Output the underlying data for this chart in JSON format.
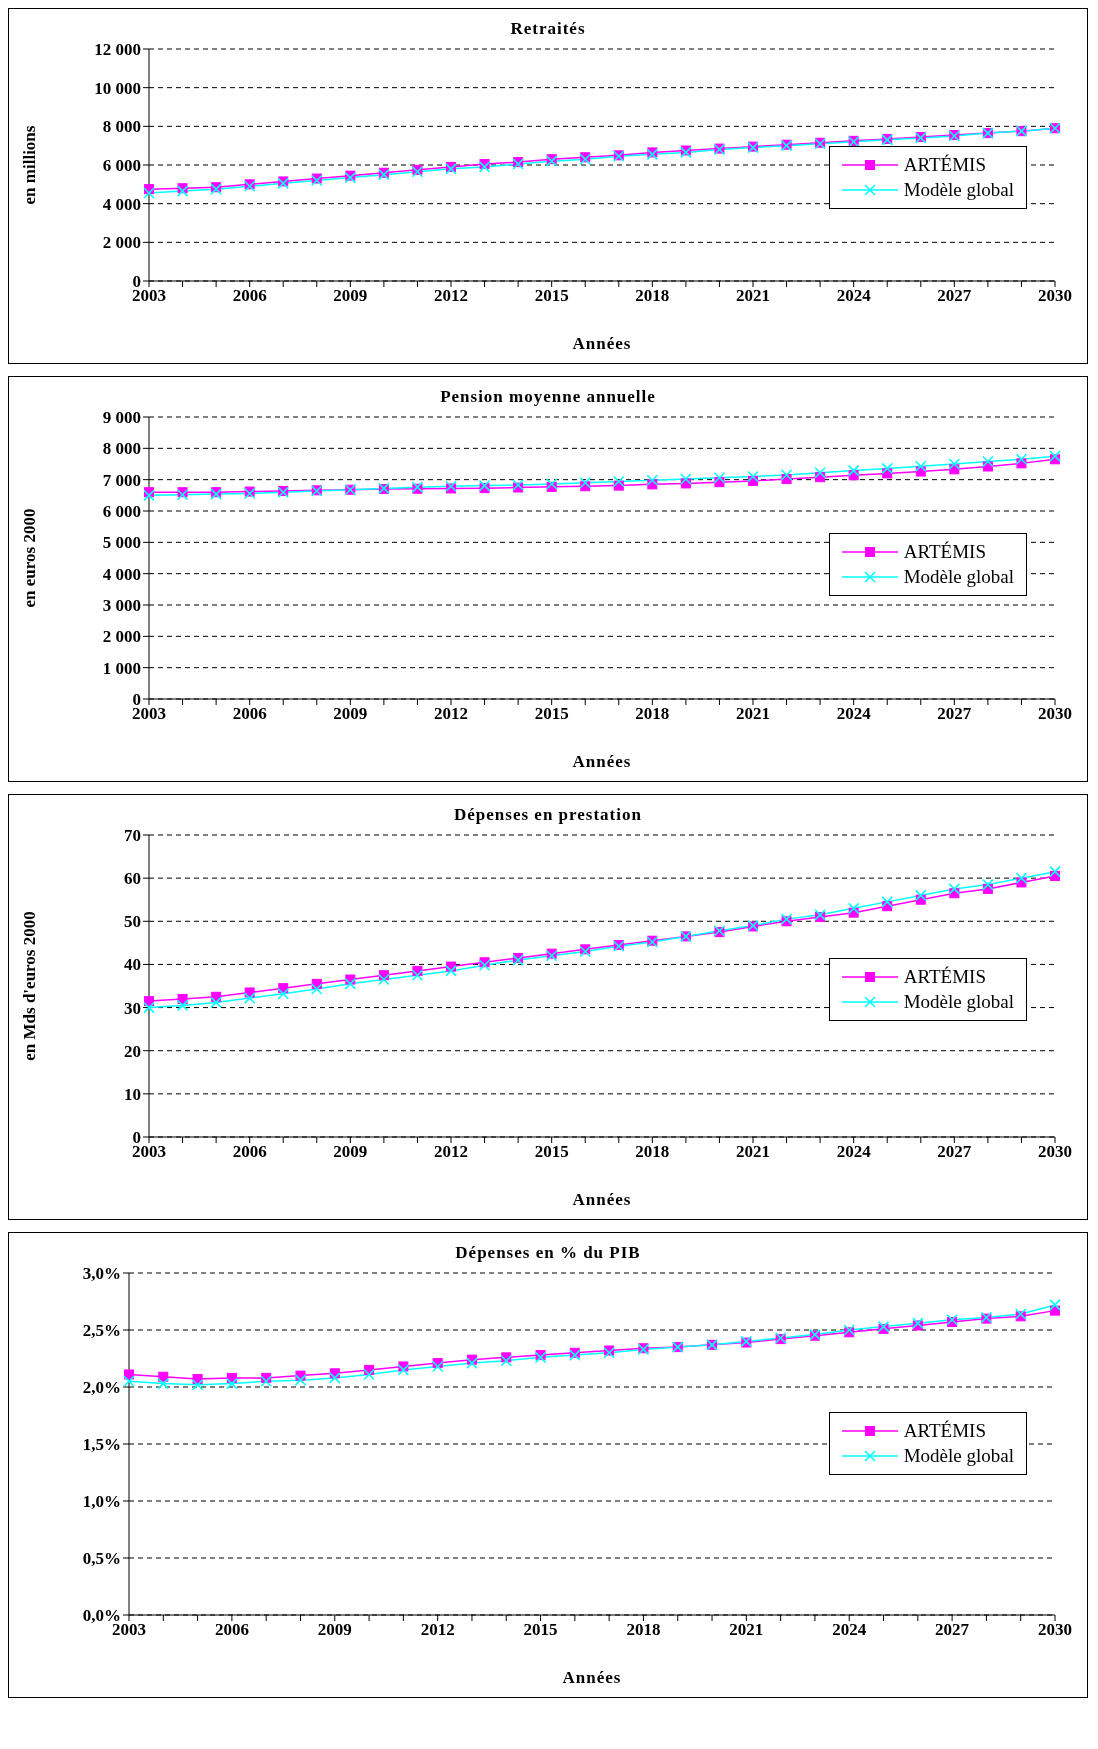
{
  "chart_data": [
    {
      "type": "line",
      "title": "Retraités",
      "xlabel": "Années",
      "ylabel": "en millions",
      "categories": [
        "2003",
        null,
        null,
        "2006",
        null,
        null,
        "2009",
        null,
        null,
        "2012",
        null,
        null,
        "2015",
        null,
        null,
        "2018",
        null,
        null,
        "2021",
        null,
        null,
        "2024",
        null,
        null,
        "2027",
        null,
        null,
        "2030"
      ],
      "series": [
        {
          "name": "ARTÉMIS",
          "color": "#ff00ff",
          "marker": "square",
          "values": [
            4750,
            4800,
            4850,
            5000,
            5150,
            5300,
            5450,
            5600,
            5750,
            5900,
            6050,
            6150,
            6300,
            6400,
            6500,
            6650,
            6750,
            6850,
            6950,
            7050,
            7150,
            7250,
            7350,
            7450,
            7550,
            7650,
            7750,
            7900
          ]
        },
        {
          "name": "Modèle global",
          "color": "#00ffff",
          "marker": "cross",
          "values": [
            4550,
            4650,
            4750,
            4900,
            5050,
            5200,
            5350,
            5500,
            5650,
            5800,
            5900,
            6050,
            6200,
            6300,
            6450,
            6550,
            6650,
            6800,
            6900,
            7000,
            7100,
            7200,
            7300,
            7400,
            7500,
            7650,
            7750,
            7900
          ]
        }
      ],
      "ylim": [
        0,
        12000
      ],
      "yticks": [
        0,
        {
          "value": 2000,
          "label": "2 000"
        },
        {
          "value": 4000,
          "label": "4 000"
        },
        {
          "value": 6000,
          "label": "6 000"
        },
        {
          "value": 8000,
          "label": "8 000"
        },
        {
          "value": 10000,
          "label": "10 000"
        },
        {
          "value": 12000,
          "label": "12 000"
        }
      ],
      "grid": "y",
      "legend": "right",
      "line_style": "solid"
    },
    {
      "type": "line",
      "title": "Pension moyenne annuelle",
      "xlabel": "Années",
      "ylabel": "en euros 2000",
      "categories": [
        "2003",
        null,
        null,
        "2006",
        null,
        null,
        "2009",
        null,
        null,
        "2012",
        null,
        null,
        "2015",
        null,
        null,
        "2018",
        null,
        null,
        "2021",
        null,
        null,
        "2024",
        null,
        null,
        "2027",
        null,
        null,
        "2030"
      ],
      "series": [
        {
          "name": "ARTÉMIS",
          "color": "#ff00ff",
          "marker": "square",
          "values": [
            6600,
            6600,
            6600,
            6620,
            6640,
            6660,
            6680,
            6700,
            6710,
            6720,
            6730,
            6750,
            6770,
            6790,
            6810,
            6850,
            6880,
            6920,
            6960,
            7020,
            7080,
            7140,
            7200,
            7260,
            7330,
            7420,
            7520,
            7650
          ]
        },
        {
          "name": "Modèle global",
          "color": "#00ffff",
          "marker": "cross",
          "values": [
            6500,
            6520,
            6540,
            6560,
            6600,
            6640,
            6680,
            6720,
            6760,
            6790,
            6810,
            6830,
            6860,
            6900,
            6940,
            6980,
            7020,
            7060,
            7100,
            7150,
            7220,
            7290,
            7360,
            7430,
            7500,
            7580,
            7650,
            7750
          ]
        }
      ],
      "ylim": [
        0,
        9000
      ],
      "yticks": [
        0,
        {
          "value": 1000,
          "label": "1 000"
        },
        {
          "value": 2000,
          "label": "2 000"
        },
        {
          "value": 3000,
          "label": "3 000"
        },
        {
          "value": 4000,
          "label": "4 000"
        },
        {
          "value": 5000,
          "label": "5 000"
        },
        {
          "value": 6000,
          "label": "6 000"
        },
        {
          "value": 7000,
          "label": "7 000"
        },
        {
          "value": 8000,
          "label": "8 000"
        },
        {
          "value": 9000,
          "label": "9 000"
        }
      ],
      "grid": "y",
      "legend": "right",
      "line_style": "solid"
    },
    {
      "type": "line",
      "title": "Dépenses en prestation",
      "xlabel": "Années",
      "ylabel": "en Mds d'euros 2000",
      "categories": [
        "2003",
        null,
        null,
        "2006",
        null,
        null,
        "2009",
        null,
        null,
        "2012",
        null,
        null,
        "2015",
        null,
        null,
        "2018",
        null,
        null,
        "2021",
        null,
        null,
        "2024",
        null,
        null,
        "2027",
        null,
        null,
        "2030"
      ],
      "series": [
        {
          "name": "ARTÉMIS",
          "color": "#ff00ff",
          "marker": "square",
          "values": [
            31.5,
            32,
            32.5,
            33.5,
            34.5,
            35.5,
            36.5,
            37.5,
            38.5,
            39.5,
            40.5,
            41.5,
            42.5,
            43.5,
            44.5,
            45.5,
            46.5,
            47.5,
            48.8,
            50,
            51,
            52,
            53.5,
            55,
            56.5,
            57.5,
            59,
            60.5
          ]
        },
        {
          "name": "Modèle global",
          "color": "#00ffff",
          "marker": "cross",
          "values": [
            30,
            30.5,
            31.2,
            32.2,
            33.2,
            34.3,
            35.5,
            36.5,
            37.5,
            38.5,
            39.8,
            41,
            42,
            43,
            44.2,
            45.2,
            46.5,
            47.8,
            49,
            50.5,
            51.5,
            53,
            54.5,
            56,
            57.5,
            58.5,
            60,
            61.5
          ]
        }
      ],
      "ylim": [
        0,
        70
      ],
      "yticks": [
        0,
        10,
        20,
        30,
        40,
        50,
        60,
        70
      ],
      "grid": "y",
      "legend": "right",
      "line_style": "solid"
    },
    {
      "type": "line",
      "title": "Dépenses en % du PIB",
      "xlabel": "Années",
      "categories": [
        "2003",
        null,
        null,
        "2006",
        null,
        null,
        "2009",
        null,
        null,
        "2012",
        null,
        null,
        "2015",
        null,
        null,
        "2018",
        null,
        null,
        "2021",
        null,
        null,
        "2024",
        null,
        null,
        "2027",
        null,
        null,
        "2030"
      ],
      "series": [
        {
          "name": "ARTÉMIS",
          "color": "#ff00ff",
          "marker": "square",
          "values": [
            2.11,
            2.09,
            2.07,
            2.08,
            2.08,
            2.1,
            2.12,
            2.15,
            2.18,
            2.21,
            2.24,
            2.26,
            2.28,
            2.3,
            2.32,
            2.34,
            2.35,
            2.37,
            2.39,
            2.42,
            2.45,
            2.48,
            2.51,
            2.54,
            2.57,
            2.6,
            2.62,
            2.67
          ]
        },
        {
          "name": "Modèle global",
          "color": "#00ffff",
          "marker": "cross",
          "values": [
            2.05,
            2.03,
            2.02,
            2.03,
            2.05,
            2.06,
            2.08,
            2.11,
            2.15,
            2.18,
            2.21,
            2.23,
            2.26,
            2.28,
            2.3,
            2.33,
            2.35,
            2.37,
            2.4,
            2.43,
            2.46,
            2.5,
            2.53,
            2.56,
            2.59,
            2.61,
            2.64,
            2.72
          ]
        }
      ],
      "ylim": [
        0,
        3
      ],
      "yticks": [
        {
          "value": 0,
          "label": "0,0%"
        },
        {
          "value": 0.5,
          "label": "0,5%"
        },
        {
          "value": 1,
          "label": "1,0%"
        },
        {
          "value": 1.5,
          "label": "1,5%"
        },
        {
          "value": 2,
          "label": "2,0%"
        },
        {
          "value": 2.5,
          "label": "2,5%"
        },
        {
          "value": 3,
          "label": "3,0%"
        }
      ],
      "grid": "y",
      "legend": "right",
      "line_style": "solid"
    }
  ]
}
